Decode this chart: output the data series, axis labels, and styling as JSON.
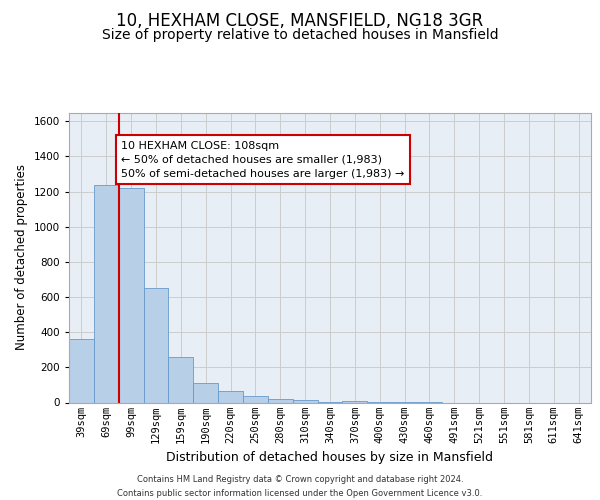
{
  "title1": "10, HEXHAM CLOSE, MANSFIELD, NG18 3GR",
  "title2": "Size of property relative to detached houses in Mansfield",
  "xlabel": "Distribution of detached houses by size in Mansfield",
  "ylabel": "Number of detached properties",
  "categories": [
    "39sqm",
    "69sqm",
    "99sqm",
    "129sqm",
    "159sqm",
    "190sqm",
    "220sqm",
    "250sqm",
    "280sqm",
    "310sqm",
    "340sqm",
    "370sqm",
    "400sqm",
    "430sqm",
    "460sqm",
    "491sqm",
    "521sqm",
    "551sqm",
    "581sqm",
    "611sqm",
    "641sqm"
  ],
  "values": [
    360,
    1240,
    1220,
    650,
    260,
    110,
    65,
    35,
    22,
    12,
    5,
    10,
    5,
    2,
    1,
    0,
    0,
    0,
    0,
    0,
    0
  ],
  "bar_color": "#b8cfe8",
  "bar_edge_color": "#6699cc",
  "annotation_text": "10 HEXHAM CLOSE: 108sqm\n← 50% of detached houses are smaller (1,983)\n50% of semi-detached houses are larger (1,983) →",
  "annotation_box_color": "#ffffff",
  "annotation_box_edge": "#cc0000",
  "vline_color": "#cc0000",
  "ylim": [
    0,
    1650
  ],
  "yticks": [
    0,
    200,
    400,
    600,
    800,
    1000,
    1200,
    1400,
    1600
  ],
  "grid_color": "#cccccc",
  "plot_bg_color": "#e8eef5",
  "bg_color": "#ffffff",
  "footer": "Contains HM Land Registry data © Crown copyright and database right 2024.\nContains public sector information licensed under the Open Government Licence v3.0.",
  "title1_fontsize": 12,
  "title2_fontsize": 10,
  "xlabel_fontsize": 9,
  "ylabel_fontsize": 8.5,
  "tick_fontsize": 7.5,
  "annotation_fontsize": 8,
  "footer_fontsize": 6
}
